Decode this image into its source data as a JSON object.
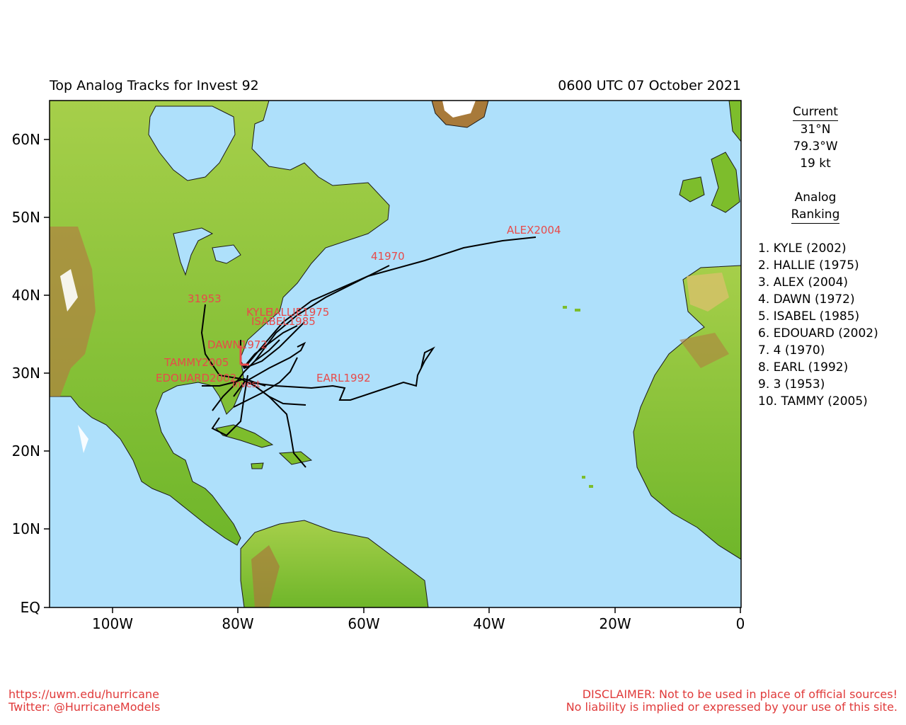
{
  "title": "Top Analog Tracks for Invest 92",
  "datetime": "0600 UTC 07 October 2021",
  "axes": {
    "lat_labels": [
      "60N",
      "50N",
      "40N",
      "30N",
      "20N",
      "10N",
      "EQ"
    ],
    "lon_labels": [
      "100W",
      "80W",
      "60W",
      "40W",
      "20W",
      "0"
    ]
  },
  "current": {
    "header": "Current",
    "lat": "31°N",
    "lon": "79.3°W",
    "speed": "19 kt"
  },
  "ranking": {
    "header_line1": "Analog",
    "header_line2": "Ranking",
    "items": [
      "1.  KYLE (2002)",
      "2.  HALLIE (1975)",
      "3.  ALEX (2004)",
      "4.  DAWN (1972)",
      "5.  ISABEL (1985)",
      "6.  EDOUARD (2002)",
      "7.  4 (1970)",
      "8.  EARL (1992)",
      "9.  3 (1953)",
      "10. TAMMY (2005)"
    ]
  },
  "track_labels": [
    "ALEX2004",
    "41970",
    "31953",
    "KYLE",
    "HALLIE1975",
    "ISABEL1985",
    "DAWN1972",
    "TAMMY2005",
    "EDOUARD2002",
    "EARL1992",
    "Invest"
  ],
  "footer": {
    "url": "https://uwm.edu/hurricane",
    "twitter": "Twitter: @HurricaneModels",
    "disclaimer1": "DISCLAIMER: Not to be used in place of official sources!",
    "disclaimer2": "No liability is implied or expressed by your use of this site."
  },
  "colors": {
    "ocean": "#aee0fb",
    "land_low": "#7dbd2c",
    "land_mid": "#c8d46a",
    "land_high": "#a8763a",
    "track": "#000000",
    "label": "#e84a4a"
  }
}
